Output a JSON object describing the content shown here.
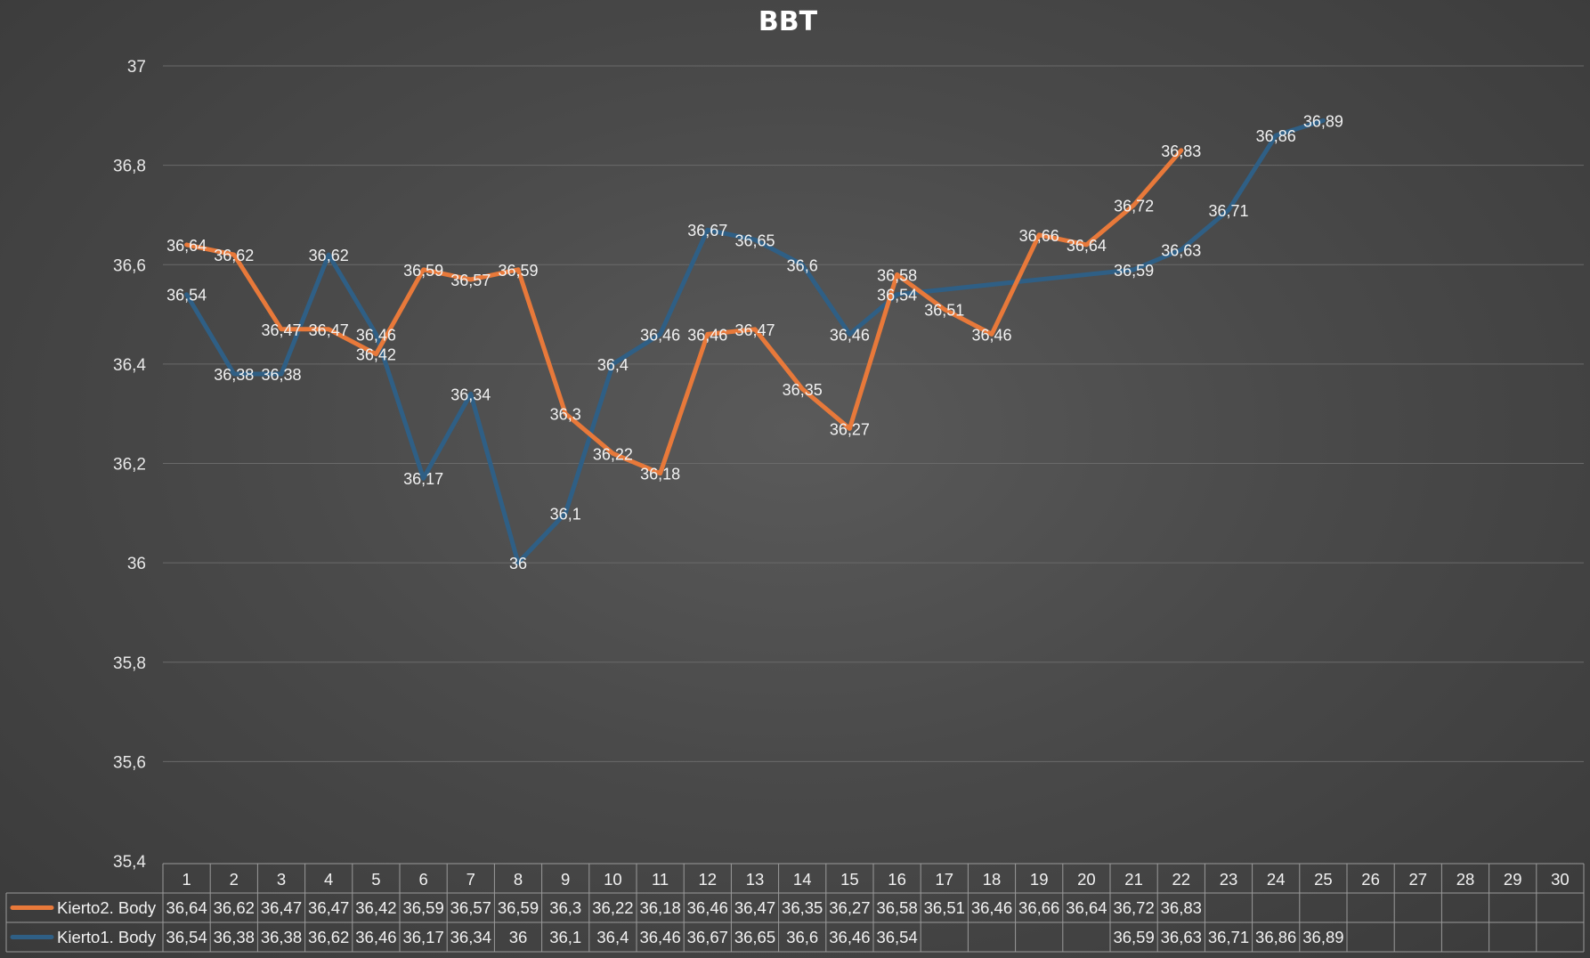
{
  "chart_data": {
    "type": "line",
    "title": "BBT",
    "xlabel": "",
    "ylabel": "",
    "ylim": [
      35.4,
      37
    ],
    "yticks": [
      "35,4",
      "35,6",
      "35,8",
      "36",
      "36,2",
      "36,4",
      "36,6",
      "36,8",
      "37"
    ],
    "categories": [
      "1",
      "2",
      "3",
      "4",
      "5",
      "6",
      "7",
      "8",
      "9",
      "10",
      "11",
      "12",
      "13",
      "14",
      "15",
      "16",
      "17",
      "18",
      "19",
      "20",
      "21",
      "22",
      "23",
      "24",
      "25",
      "26",
      "27",
      "28",
      "29",
      "30"
    ],
    "grid": true,
    "legend": "data-table-bottom",
    "series": [
      {
        "name": "Kierto2. Body",
        "color": "#e8793a",
        "values": [
          36.64,
          36.62,
          36.47,
          36.47,
          36.42,
          36.59,
          36.57,
          36.59,
          36.3,
          36.22,
          36.18,
          36.46,
          36.47,
          36.35,
          36.27,
          36.58,
          36.51,
          36.46,
          36.66,
          36.64,
          36.72,
          36.83,
          null,
          null,
          null,
          null,
          null,
          null,
          null,
          null
        ],
        "labels": [
          "36,64",
          "36,62",
          "36,47",
          "36,47",
          "36,42",
          "36,59",
          "36,57",
          "36,59",
          "36,3",
          "36,22",
          "36,18",
          "36,46",
          "36,47",
          "36,35",
          "36,27",
          "36,58",
          "36,51",
          "36,46",
          "36,66",
          "36,64",
          "36,72",
          "36,83",
          "",
          "",
          "",
          "",
          "",
          "",
          "",
          ""
        ]
      },
      {
        "name": "Kierto1. Body",
        "color": "#2f5f85",
        "values": [
          36.54,
          36.38,
          36.38,
          36.62,
          36.46,
          36.17,
          36.34,
          36,
          36.1,
          36.4,
          36.46,
          36.67,
          36.65,
          36.6,
          36.46,
          36.54,
          null,
          null,
          null,
          null,
          36.59,
          36.63,
          36.71,
          36.86,
          36.89,
          null,
          null,
          null,
          null,
          null
        ],
        "labels": [
          "36,54",
          "36,38",
          "36,38",
          "36,62",
          "36,46",
          "36,17",
          "36,34",
          "36",
          "36,1",
          "36,4",
          "36,46",
          "36,67",
          "36,65",
          "36,6",
          "36,46",
          "36,54",
          "",
          "",
          "",
          "",
          "36,59",
          "36,63",
          "36,71",
          "36,86",
          "36,89",
          "",
          "",
          "",
          "",
          ""
        ]
      }
    ]
  }
}
